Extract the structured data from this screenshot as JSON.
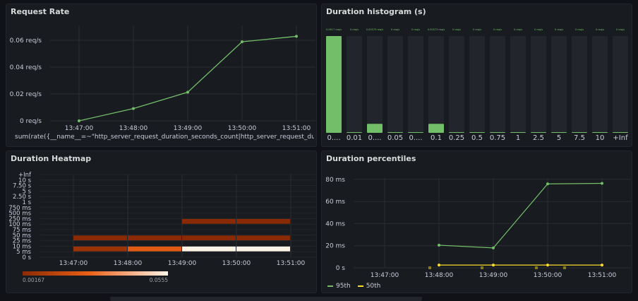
{
  "panels": {
    "request_rate": {
      "title": "Request Rate"
    },
    "histogram": {
      "title": "Duration histogram (s)"
    },
    "heatmap": {
      "title": "Duration Heatmap"
    },
    "percentiles": {
      "title": "Duration percentiles"
    }
  },
  "chart_data": [
    {
      "type": "line",
      "title": "Request Rate",
      "x": [
        "13:47:00",
        "13:48:00",
        "13:49:00",
        "13:50:00",
        "13:51:00"
      ],
      "y_ticks": [
        "0 req/s",
        "0.02 req/s",
        "0.04 req/s",
        "0.06 req/s"
      ],
      "ylim": [
        0,
        0.07
      ],
      "grid": true,
      "legend_position": "bottom",
      "series": [
        {
          "name": "sum(rate({__name__=~\"http_server_request_duration_seconds_count|http_server_request_duration_seconds_cou",
          "color": "#73bf69",
          "points": [
            {
              "x": "13:47:00",
              "y": 0.0
            },
            {
              "x": "13:48:00",
              "y": 0.009
            },
            {
              "x": "13:49:00",
              "y": 0.021
            },
            {
              "x": "13:50:00",
              "y": 0.058
            },
            {
              "x": "13:51:00",
              "y": 0.062
            }
          ]
        }
      ]
    },
    {
      "type": "bar",
      "title": "Duration histogram (s)",
      "categories": [
        "0....",
        "0.01",
        "0....",
        "0.05",
        "0....",
        "0.1",
        "0.25",
        "0.5",
        "0.75",
        "1",
        "2.5",
        "5",
        "7.5",
        "10",
        "+Inf"
      ],
      "top_labels": [
        "0.0617 req/s",
        "0 req/s",
        "0.00573 req/s",
        "0 req/s",
        "0 req/s",
        "0.00573 req/s",
        "0 req/s",
        "0 req/s",
        "0 req/s",
        "0 req/s",
        "0 req/s",
        "0 req/s",
        "0 req/s",
        "0 req/s",
        "0 req/s"
      ],
      "values": [
        0.0617,
        0,
        0.00573,
        0,
        0,
        0.00573,
        0,
        0,
        0,
        0,
        0,
        0,
        0,
        0,
        0
      ],
      "max": 0.0617,
      "color": "#73bf69"
    },
    {
      "type": "heatmap",
      "title": "Duration Heatmap",
      "x": [
        "13:47:00",
        "13:48:00",
        "13:49:00",
        "13:50:00",
        "13:51:00"
      ],
      "y_buckets": [
        "0 s",
        "5 ms",
        "10 ms",
        "25 ms",
        "50 ms",
        "75 ms",
        "100 ms",
        "250 ms",
        "500 ms",
        "750 ms",
        "1 s",
        "2.50 s",
        "5 s",
        "7.50 s",
        "10 s",
        "+Inf"
      ],
      "color_scale": {
        "min_label": "0.00167",
        "max_label": "0.0555",
        "min_color": "#8a2a05",
        "max_color": "#fff3e6"
      },
      "cells": [
        {
          "x_start": "13:47:00",
          "x_end": "13:48:00",
          "bucket": "5 ms",
          "value": 0.006
        },
        {
          "x_start": "13:48:00",
          "x_end": "13:49:00",
          "bucket": "5 ms",
          "value": 0.024
        },
        {
          "x_start": "13:49:00",
          "x_end": "13:50:00",
          "bucket": "5 ms",
          "value": 0.0555
        },
        {
          "x_start": "13:50:00",
          "x_end": "13:51:00",
          "bucket": "5 ms",
          "value": 0.0555
        },
        {
          "x_start": "13:47:00",
          "x_end": "13:48:00",
          "bucket": "25 ms",
          "value": 0.00167
        },
        {
          "x_start": "13:48:00",
          "x_end": "13:49:00",
          "bucket": "25 ms",
          "value": 0.00167
        },
        {
          "x_start": "13:49:00",
          "x_end": "13:50:00",
          "bucket": "25 ms",
          "value": 0.00167
        },
        {
          "x_start": "13:50:00",
          "x_end": "13:51:00",
          "bucket": "25 ms",
          "value": 0.00167
        },
        {
          "x_start": "13:49:00",
          "x_end": "13:50:00",
          "bucket": "100 ms",
          "value": 0.00167
        },
        {
          "x_start": "13:50:00",
          "x_end": "13:51:00",
          "bucket": "100 ms",
          "value": 0.00167
        }
      ]
    },
    {
      "type": "line",
      "title": "Duration percentiles",
      "x": [
        "13:47:00",
        "13:48:00",
        "13:49:00",
        "13:50:00",
        "13:51:00"
      ],
      "y_ticks": [
        "0 s",
        "20 ms",
        "40 ms",
        "60 ms",
        "80 ms"
      ],
      "ylim": [
        0,
        85
      ],
      "grid": true,
      "legend_position": "bottom",
      "series": [
        {
          "name": "95th",
          "color": "#73bf69",
          "points": [
            {
              "x": "13:48:00",
              "y": 20.5
            },
            {
              "x": "13:49:00",
              "y": 18
            },
            {
              "x": "13:50:00",
              "y": 76
            },
            {
              "x": "13:51:00",
              "y": 76.5
            }
          ]
        },
        {
          "name": "50th",
          "color": "#fade2a",
          "points": [
            {
              "x": "13:48:00",
              "y": 2.5
            },
            {
              "x": "13:49:00",
              "y": 2.5
            },
            {
              "x": "13:50:00",
              "y": 2.5
            },
            {
              "x": "13:51:00",
              "y": 2.5
            }
          ]
        }
      ]
    }
  ]
}
